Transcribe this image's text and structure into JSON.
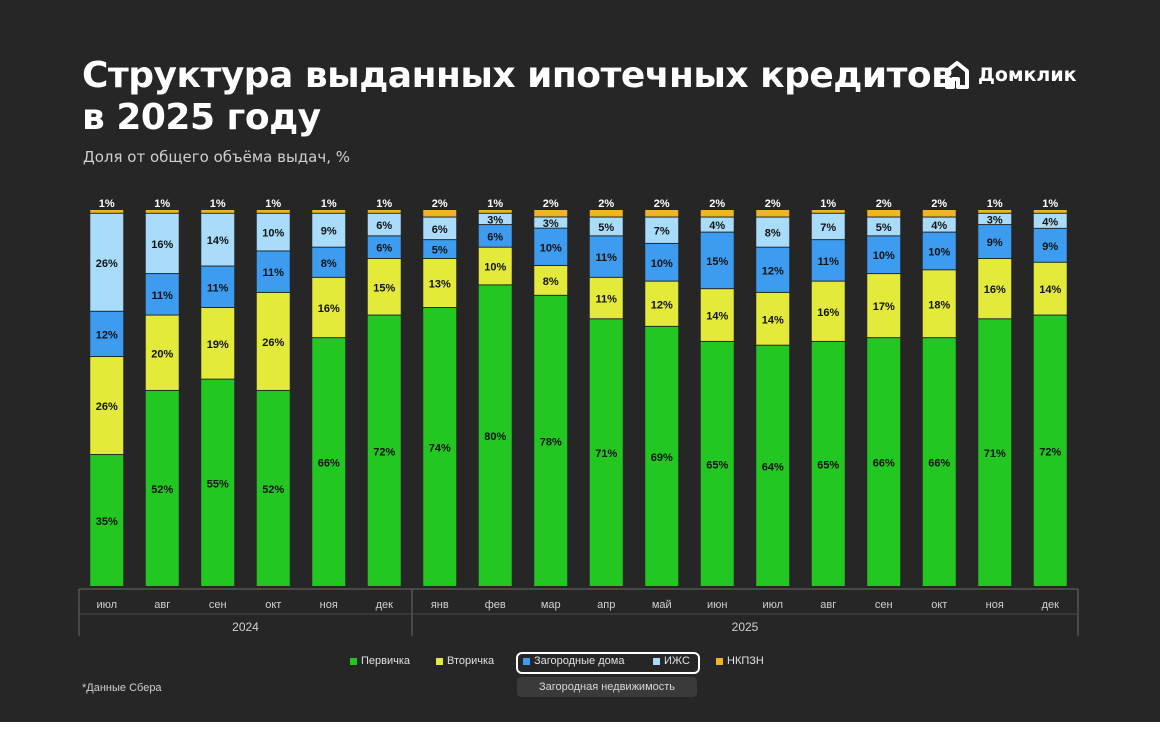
{
  "title_line1": "Структура выданных ипотечных кредитов",
  "title_line2": "в 2025 году",
  "subtitle": "Доля от общего объёма выдач, %",
  "brand": {
    "name": "Домклик",
    "logo": "domclick-logo-icon"
  },
  "footnote": "*Данные Сбера",
  "colors": {
    "background": "#262626",
    "primary": "#22c722",
    "secondary": "#e3ea3a",
    "country_houses": "#3d9cf0",
    "izhs": "#a8dcfa",
    "nkpzn": "#f2b422"
  },
  "legend": {
    "items": [
      "Первичка",
      "Вторичка",
      "Загородные дома",
      "ИЖС",
      "НКПЗН"
    ],
    "group_label": "Загородная недвижимость"
  },
  "chart_data": {
    "type": "bar",
    "stacked": true,
    "unit": "%",
    "categories": [
      "июл",
      "авг",
      "сен",
      "окт",
      "ноя",
      "дек",
      "янв",
      "фев",
      "мар",
      "апр",
      "май",
      "июн",
      "июл",
      "авг",
      "сен",
      "окт",
      "ноя",
      "дек"
    ],
    "years": [
      {
        "label": "2024",
        "from": 0,
        "to": 5
      },
      {
        "label": "2025",
        "from": 6,
        "to": 17
      }
    ],
    "series": [
      {
        "name": "Первичка",
        "values": [
          35,
          52,
          55,
          52,
          66,
          72,
          74,
          80,
          78,
          71,
          69,
          65,
          64,
          65,
          66,
          66,
          71,
          72
        ]
      },
      {
        "name": "Вторичка",
        "values": [
          26,
          20,
          19,
          26,
          16,
          15,
          13,
          10,
          8,
          11,
          12,
          14,
          14,
          16,
          17,
          18,
          16,
          14
        ]
      },
      {
        "name": "Загородные дома",
        "values": [
          12,
          11,
          11,
          11,
          8,
          6,
          5,
          6,
          10,
          11,
          10,
          15,
          12,
          11,
          10,
          10,
          9,
          9
        ]
      },
      {
        "name": "ИЖС",
        "values": [
          26,
          16,
          14,
          10,
          9,
          6,
          6,
          3,
          3,
          5,
          7,
          4,
          8,
          7,
          5,
          4,
          3,
          4
        ]
      },
      {
        "name": "НКПЗН",
        "values": [
          1,
          1,
          1,
          1,
          1,
          1,
          2,
          1,
          2,
          2,
          2,
          2,
          2,
          1,
          2,
          2,
          1,
          1
        ]
      }
    ],
    "ylim": [
      0,
      100
    ]
  }
}
